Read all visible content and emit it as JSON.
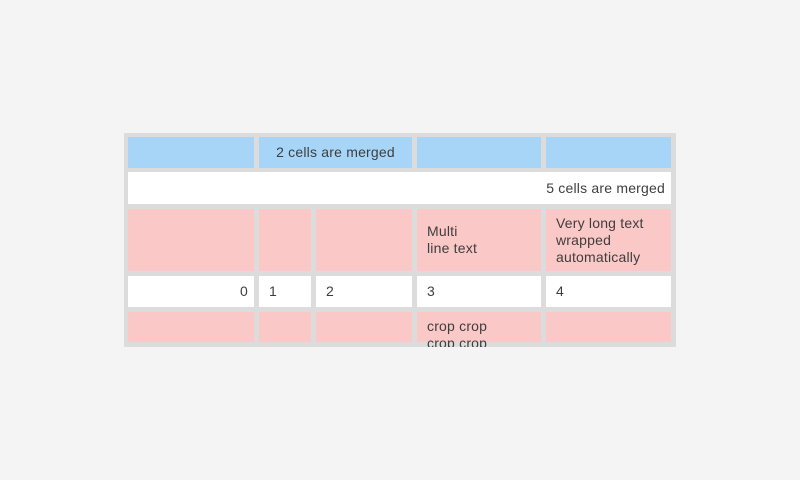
{
  "screen": {
    "background_color": "#f4f4f4"
  },
  "table": {
    "colors": {
      "surface": "#dcdcdc",
      "cell_white": "#ffffff",
      "cell_blue": "#a7d5f7",
      "cell_pink": "#fac8c6",
      "text": "#3e3e3e"
    },
    "rows": [
      {
        "cells": [
          {
            "text": ""
          },
          {
            "text": "2 cells are merged"
          },
          {
            "text": ""
          },
          {
            "text": ""
          }
        ]
      },
      {
        "cells": [
          {
            "text": "5 cells are merged"
          }
        ]
      },
      {
        "cells": [
          {
            "text": ""
          },
          {
            "text": ""
          },
          {
            "text": ""
          },
          {
            "text": "Multi\nline text"
          },
          {
            "text": "Very long text wrapped automatically"
          }
        ]
      },
      {
        "cells": [
          {
            "text": "0"
          },
          {
            "text": "1"
          },
          {
            "text": "2"
          },
          {
            "text": "3"
          },
          {
            "text": "4"
          }
        ]
      },
      {
        "cells": [
          {
            "text": ""
          },
          {
            "text": ""
          },
          {
            "text": ""
          },
          {
            "text": "crop crop crop crop"
          },
          {
            "text": ""
          }
        ]
      }
    ]
  }
}
